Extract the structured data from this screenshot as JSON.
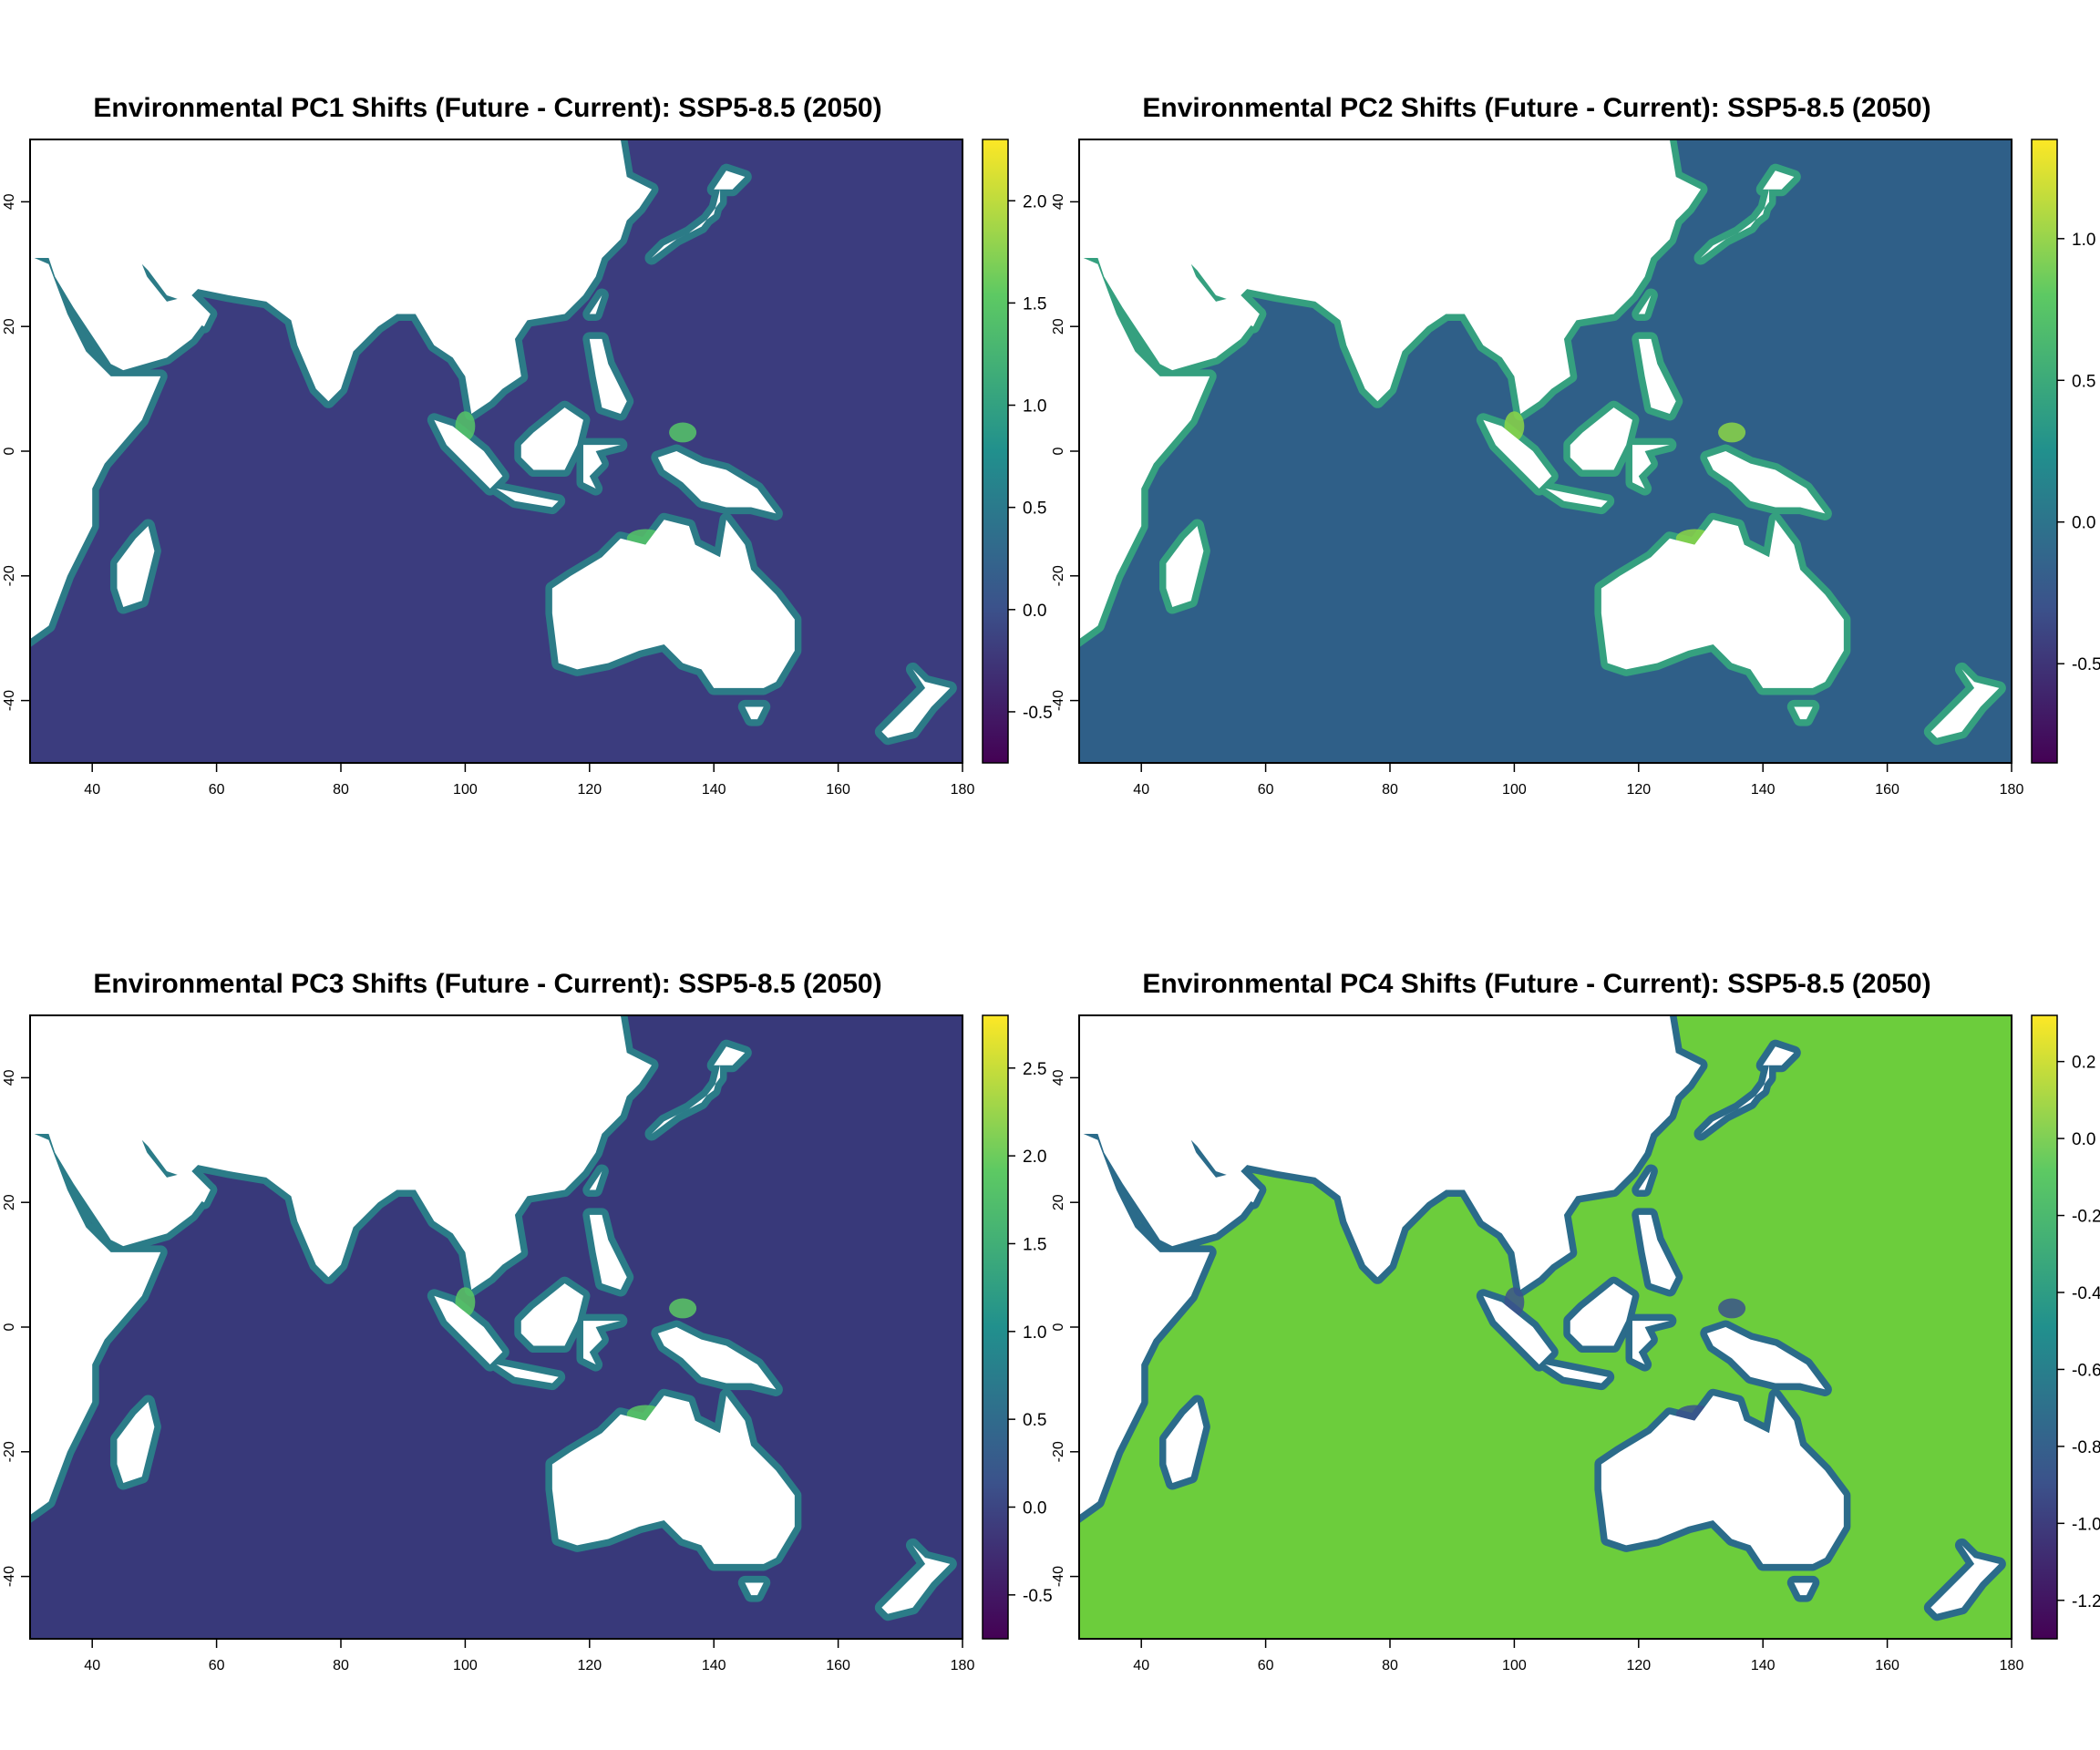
{
  "figure": {
    "panels": [
      {
        "title": "Environmental PC1 Shifts (Future - Current): SSP5-8.5 (2050)",
        "ocean_color": "#3b3c7e",
        "coast_color": "#2c7b87",
        "hotspot_color": "#56c567",
        "colorbar": {
          "min": -0.75,
          "max": 2.3,
          "ticks": [
            "2.0",
            "1.5",
            "1.0",
            "0.5",
            "0.0",
            "-0.5"
          ],
          "tick_values": [
            2.0,
            1.5,
            1.0,
            0.5,
            0.0,
            -0.5
          ]
        }
      },
      {
        "title": "Environmental PC2 Shifts (Future - Current): SSP5-8.5 (2050)",
        "ocean_color": "#2f5f88",
        "coast_color": "#35a07f",
        "hotspot_color": "#8bd646",
        "colorbar": {
          "min": -0.85,
          "max": 1.35,
          "ticks": [
            "1.0",
            "0.5",
            "0.0",
            "-0.5"
          ],
          "tick_values": [
            1.0,
            0.5,
            0.0,
            -0.5
          ]
        }
      },
      {
        "title": "Environmental PC3 Shifts (Future - Current): SSP5-8.5 (2050)",
        "ocean_color": "#38397a",
        "coast_color": "#2b7c88",
        "hotspot_color": "#5ac864",
        "colorbar": {
          "min": -0.75,
          "max": 2.8,
          "ticks": [
            "2.5",
            "2.0",
            "1.5",
            "1.0",
            "0.5",
            "0.0",
            "-0.5"
          ],
          "tick_values": [
            2.5,
            2.0,
            1.5,
            1.0,
            0.5,
            0.0,
            -0.5
          ]
        }
      },
      {
        "title": "Environmental PC4 Shifts (Future - Current): SSP5-8.5 (2050)",
        "ocean_color": "#6ccd3c",
        "coast_color": "#2b6b8a",
        "hotspot_color": "#3b528b",
        "colorbar": {
          "min": -1.3,
          "max": 0.32,
          "ticks": [
            "0.2",
            "0.0",
            "-0.2",
            "-0.4",
            "-0.6",
            "-0.8",
            "-1.0",
            "-1.2"
          ],
          "tick_values": [
            0.2,
            0.0,
            -0.2,
            -0.4,
            -0.6,
            -0.8,
            -1.0,
            -1.2
          ]
        }
      }
    ],
    "x_axis": {
      "ticks": [
        "40",
        "60",
        "80",
        "100",
        "120",
        "140",
        "160",
        "180"
      ],
      "tick_values": [
        40,
        60,
        80,
        100,
        120,
        140,
        160,
        180
      ],
      "range": [
        30,
        180
      ]
    },
    "y_axis": {
      "ticks": [
        "40",
        "20",
        "0",
        "-20",
        "-40"
      ],
      "tick_values": [
        40,
        20,
        0,
        -20,
        -40
      ],
      "range": [
        -50,
        50
      ]
    },
    "colormap": [
      "#440154",
      "#3b528b",
      "#21908d",
      "#5dc963",
      "#fde725"
    ]
  }
}
